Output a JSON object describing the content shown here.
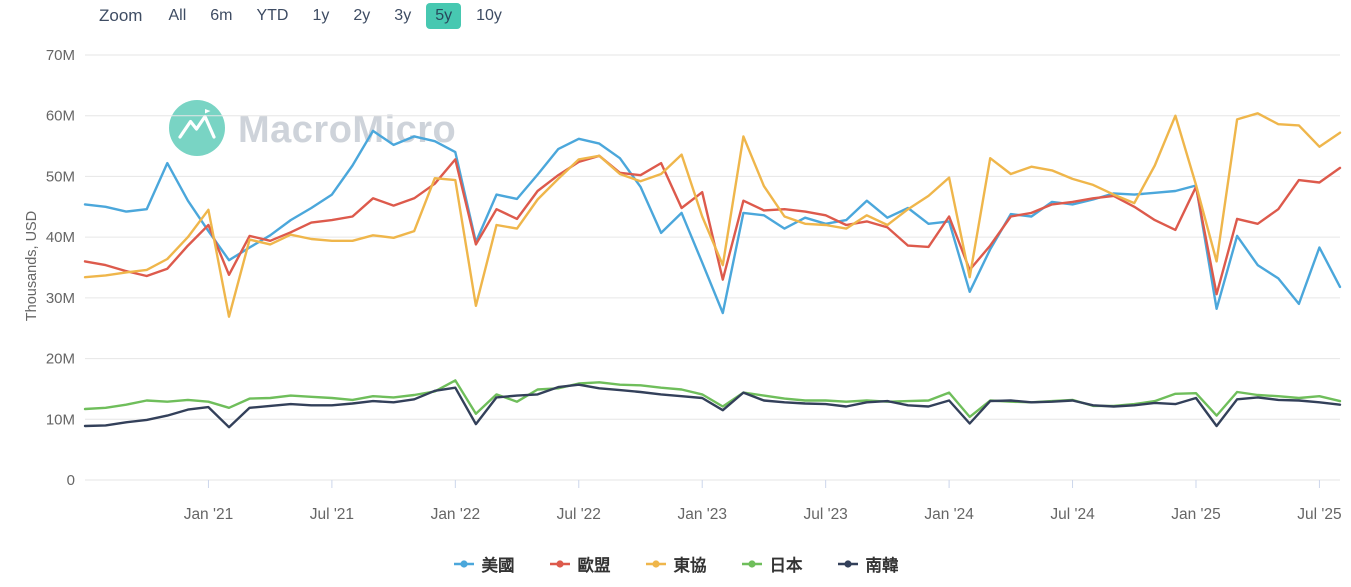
{
  "toolbar": {
    "zoom_label": "Zoom",
    "buttons": [
      {
        "label": "All",
        "selected": false
      },
      {
        "label": "6m",
        "selected": false
      },
      {
        "label": "YTD",
        "selected": false
      },
      {
        "label": "1y",
        "selected": false
      },
      {
        "label": "2y",
        "selected": false
      },
      {
        "label": "3y",
        "selected": false
      },
      {
        "label": "5y",
        "selected": true
      },
      {
        "label": "10y",
        "selected": false
      }
    ],
    "selected_range": "5y",
    "selected_color": "#47c8b1"
  },
  "watermark": {
    "text": "MacroMicro",
    "icon": "mountain-logo-icon",
    "logo_color": "#4ac6b0"
  },
  "chart_data": {
    "type": "line",
    "title": "",
    "ylabel": "Thousands, USD",
    "value_unit": "M",
    "ylim": [
      0,
      70
    ],
    "grid": true,
    "legend_position": "bottom",
    "y_ticks": [
      {
        "value": 0,
        "label": "0"
      },
      {
        "value": 10,
        "label": "10M"
      },
      {
        "value": 20,
        "label": "20M"
      },
      {
        "value": 30,
        "label": "30M"
      },
      {
        "value": 40,
        "label": "40M"
      },
      {
        "value": 50,
        "label": "50M"
      },
      {
        "value": 60,
        "label": "60M"
      },
      {
        "value": 70,
        "label": "70M"
      }
    ],
    "x": [
      "2020-07",
      "2020-08",
      "2020-09",
      "2020-10",
      "2020-11",
      "2020-12",
      "2021-01",
      "2021-02",
      "2021-03",
      "2021-04",
      "2021-05",
      "2021-06",
      "2021-07",
      "2021-08",
      "2021-09",
      "2021-10",
      "2021-11",
      "2021-12",
      "2022-01",
      "2022-02",
      "2022-03",
      "2022-04",
      "2022-05",
      "2022-06",
      "2022-07",
      "2022-08",
      "2022-09",
      "2022-10",
      "2022-11",
      "2022-12",
      "2023-01",
      "2023-02",
      "2023-03",
      "2023-04",
      "2023-05",
      "2023-06",
      "2023-07",
      "2023-08",
      "2023-09",
      "2023-10",
      "2023-11",
      "2023-12",
      "2024-01",
      "2024-02",
      "2024-03",
      "2024-04",
      "2024-05",
      "2024-06",
      "2024-07",
      "2024-08",
      "2024-09",
      "2024-10",
      "2024-11",
      "2024-12",
      "2025-01",
      "2025-02",
      "2025-03",
      "2025-04",
      "2025-05",
      "2025-06",
      "2025-07",
      "2025-08"
    ],
    "x_ticks": [
      {
        "index": 6,
        "label": "Jan '21"
      },
      {
        "index": 12,
        "label": "Jul '21"
      },
      {
        "index": 18,
        "label": "Jan '22"
      },
      {
        "index": 24,
        "label": "Jul '22"
      },
      {
        "index": 30,
        "label": "Jan '23"
      },
      {
        "index": 36,
        "label": "Jul '23"
      },
      {
        "index": 42,
        "label": "Jan '24"
      },
      {
        "index": 48,
        "label": "Jul '24"
      },
      {
        "index": 54,
        "label": "Jan '25"
      },
      {
        "index": 60,
        "label": "Jul '25"
      }
    ],
    "series": [
      {
        "id": "us",
        "name": "美國",
        "color": "#4BA7DB",
        "values": [
          45.4,
          45,
          44.2,
          44.6,
          52.2,
          46,
          41,
          36.2,
          38.3,
          40.3,
          42.8,
          44.8,
          47,
          51.8,
          57.5,
          55.2,
          56.6,
          55.8,
          54,
          39.2,
          47,
          46.3,
          50.3,
          54.5,
          56.2,
          55.4,
          53,
          48.3,
          40.7,
          44,
          35.8,
          27.5,
          44,
          43.6,
          41.4,
          43.2,
          42.2,
          42.8,
          46,
          43.2,
          44.8,
          42.2,
          42.6,
          31,
          38,
          43.8,
          43.4,
          45.8,
          45.4,
          46.2,
          47.2,
          47,
          47.3,
          47.6,
          48.5,
          28.2,
          40.2,
          35.4,
          33.2,
          29,
          38.3,
          31.8
        ]
      },
      {
        "id": "eu",
        "name": "歐盟",
        "color": "#DD5A4C",
        "values": [
          36,
          35.4,
          34.4,
          33.6,
          34.8,
          38.6,
          42,
          33.8,
          40.2,
          39.4,
          40.8,
          42.4,
          42.8,
          43.4,
          46.4,
          45.2,
          46.4,
          48.8,
          52.8,
          38.8,
          44.6,
          43,
          47.6,
          50.2,
          52.4,
          53.4,
          50.6,
          50.2,
          52.2,
          44.8,
          47.4,
          33,
          46,
          44.4,
          44.6,
          44.2,
          43.6,
          42,
          42.6,
          41.6,
          38.6,
          38.4,
          43.4,
          34.6,
          38.6,
          43.4,
          44,
          45.4,
          45.8,
          46.4,
          46.8,
          45,
          42.8,
          41.2,
          48.3,
          30.6,
          43,
          42.2,
          44.6,
          49.4,
          49,
          51.4
        ]
      },
      {
        "id": "asean",
        "name": "東協",
        "color": "#EFB64B",
        "values": [
          33.4,
          33.7,
          34.2,
          34.6,
          36.4,
          40,
          44.5,
          26.9,
          39.6,
          38.8,
          40.4,
          39.7,
          39.4,
          39.4,
          40.3,
          39.9,
          41,
          49.7,
          49.4,
          28.7,
          42,
          41.4,
          46.2,
          49.6,
          52.8,
          53.4,
          50.4,
          49.2,
          50.4,
          53.6,
          43.4,
          35.4,
          56.6,
          48.4,
          43.4,
          42.2,
          42,
          41.4,
          43.6,
          42,
          44.6,
          46.8,
          49.8,
          33.4,
          53,
          50.4,
          51.6,
          51,
          49.6,
          48.6,
          47,
          45.6,
          51.8,
          60,
          48.6,
          36,
          59.4,
          60.4,
          58.6,
          58.4,
          54.9,
          57.2
        ]
      },
      {
        "id": "japan",
        "name": "日本",
        "color": "#6FBE5B",
        "values": [
          11.7,
          11.9,
          12.4,
          13.1,
          12.9,
          13.2,
          12.9,
          11.9,
          13.4,
          13.5,
          13.9,
          13.7,
          13.5,
          13.2,
          13.8,
          13.6,
          14,
          14.6,
          16.4,
          10.9,
          14.1,
          12.9,
          14.9,
          15.1,
          15.9,
          16.1,
          15.7,
          15.6,
          15.2,
          14.9,
          14.1,
          12.1,
          14.4,
          13.9,
          13.4,
          13.1,
          13.1,
          12.9,
          13.1,
          12.9,
          13,
          13.1,
          14.4,
          10.4,
          13.1,
          12.9,
          12.8,
          13,
          13.2,
          12.2,
          12.2,
          12.5,
          13,
          14.2,
          14.3,
          10.6,
          14.5,
          14,
          13.8,
          13.5,
          13.8,
          13
        ]
      },
      {
        "id": "korea",
        "name": "南韓",
        "color": "#33405A",
        "values": [
          8.9,
          9,
          9.5,
          9.9,
          10.6,
          11.6,
          12,
          8.7,
          11.9,
          12.2,
          12.5,
          12.3,
          12.3,
          12.6,
          13,
          12.8,
          13.3,
          14.7,
          15.2,
          9.2,
          13.6,
          13.9,
          14.1,
          15.3,
          15.7,
          15.1,
          14.8,
          14.5,
          14.1,
          13.8,
          13.5,
          11.5,
          14.4,
          13.1,
          12.8,
          12.6,
          12.5,
          12.1,
          12.8,
          13,
          12.3,
          12.1,
          13.1,
          9.3,
          13,
          13.1,
          12.8,
          12.9,
          13.1,
          12.3,
          12.1,
          12.3,
          12.7,
          12.5,
          13.5,
          8.9,
          13.3,
          13.6,
          13.2,
          13.1,
          12.8,
          12.4
        ]
      }
    ]
  }
}
